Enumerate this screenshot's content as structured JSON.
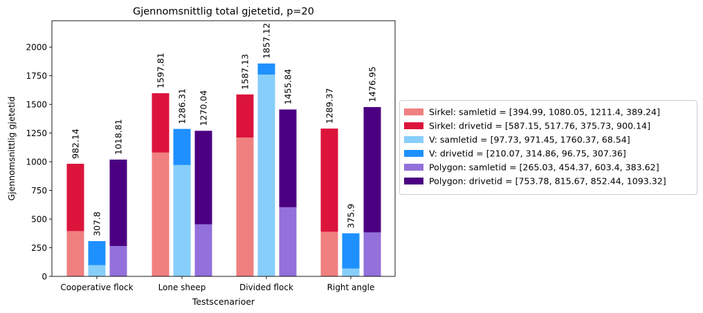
{
  "chart_data": {
    "type": "bar",
    "stacked": true,
    "grouped": true,
    "title": "Gjennomsnittlig total gjetetid, p=20",
    "xlabel": "Testscenarioer",
    "ylabel": "Gjennomsnittlig gjetetid",
    "ylim": [
      0,
      2230
    ],
    "yticks": [
      0,
      250,
      500,
      750,
      1000,
      1250,
      1500,
      1750,
      2000
    ],
    "grid": false,
    "legend_placement": "outside-right",
    "categories": [
      "Cooperative flock",
      "Lone sheep",
      "Divided flock",
      "Right angle"
    ],
    "groups": [
      {
        "key": "sirkel",
        "totals_labels": [
          "982.14",
          "1597.81",
          "1587.13",
          "1289.37"
        ],
        "segments": [
          {
            "legend": "Sirkel: samletid = [394.99, 1080.05, 1211.4, 389.24]",
            "color": "#F08080",
            "values": [
              394.99,
              1080.05,
              1211.4,
              389.24
            ]
          },
          {
            "legend": "Sirkel: drivetid = [587.15, 517.76, 375.73, 900.14]",
            "color": "#DC143C",
            "values": [
              587.15,
              517.76,
              375.73,
              900.14
            ]
          }
        ]
      },
      {
        "key": "v",
        "totals_labels": [
          "307.8",
          "1286.31",
          "1857.12",
          "375.9"
        ],
        "segments": [
          {
            "legend": "V: samletid = [97.73, 971.45, 1760.37, 68.54]",
            "color": "#87CEFA",
            "values": [
              97.73,
              971.45,
              1760.37,
              68.54
            ]
          },
          {
            "legend": "V: drivetid = [210.07, 314.86, 96.75, 307.36]",
            "color": "#1E90FF",
            "values": [
              210.07,
              314.86,
              96.75,
              307.36
            ]
          }
        ]
      },
      {
        "key": "polygon",
        "totals_labels": [
          "1018.81",
          "1270.04",
          "1455.84",
          "1476.95"
        ],
        "segments": [
          {
            "legend": "Polygon: samletid = [265.03, 454.37, 603.4, 383.62]",
            "color": "#9370DB",
            "values": [
              265.03,
              454.37,
              603.4,
              383.62
            ]
          },
          {
            "legend": "Polygon: drivetid = [753.78, 815.67, 852.44, 1093.32]",
            "color": "#4B0082",
            "values": [
              753.78,
              815.67,
              852.44,
              1093.32
            ]
          }
        ]
      }
    ]
  }
}
